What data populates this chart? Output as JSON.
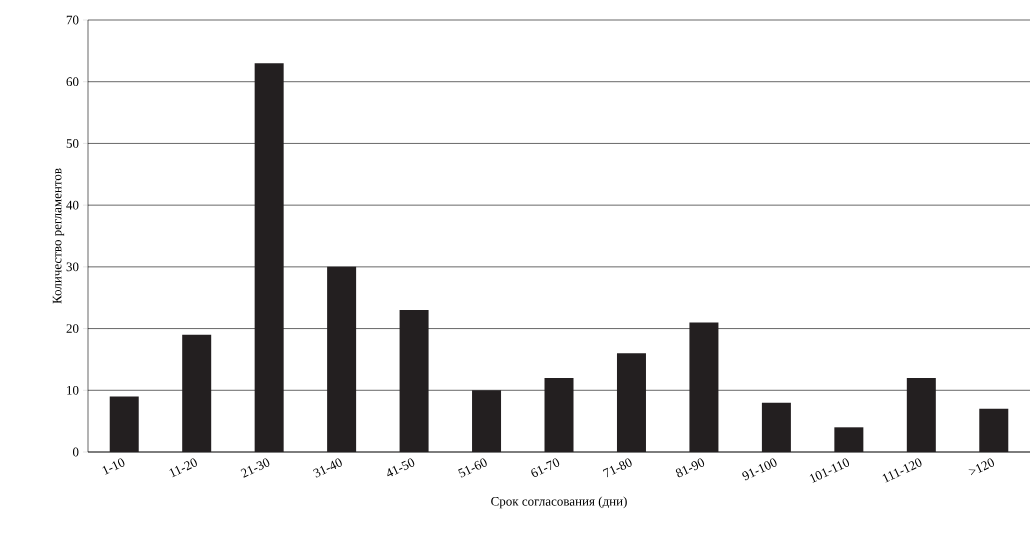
{
  "chart_data": {
    "type": "bar",
    "xlabel": "Срок согласования (дни)",
    "ylabel": "Количество регламентов",
    "categories": [
      "1-10",
      "11-20",
      "21-30",
      "31-40",
      "41-50",
      "51-60",
      "61-70",
      "71-80",
      "81-90",
      "91-100",
      "101-110",
      "111-120",
      ">120"
    ],
    "values": [
      9,
      19,
      63,
      30,
      23,
      10,
      12,
      16,
      21,
      8,
      4,
      12,
      7
    ],
    "color": "#231f20",
    "ylim": [
      0,
      70
    ],
    "yticks": [
      0,
      10,
      20,
      30,
      40,
      50,
      60,
      70
    ],
    "grid": "y"
  }
}
